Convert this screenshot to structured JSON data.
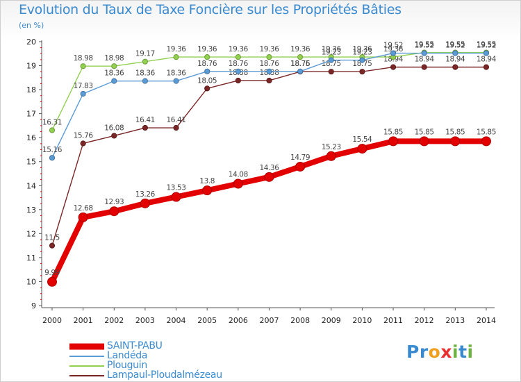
{
  "header": {
    "title": "Evolution du Taux de Taxe Foncière sur les Propriétés Bâties",
    "unit": "(en %)"
  },
  "chart_data": {
    "type": "line",
    "title": "Evolution du Taux de Taxe Foncière sur les Propriétés Bâties",
    "ylabel": "(en %)",
    "xlabel": "",
    "x": [
      "2000",
      "2001",
      "2002",
      "2003",
      "2004",
      "2005",
      "2006",
      "2007",
      "2008",
      "2009",
      "2010",
      "2011",
      "2012",
      "2013",
      "2014"
    ],
    "ylim": [
      9,
      20
    ],
    "yticks": [
      9,
      10,
      11,
      12,
      13,
      14,
      15,
      16,
      17,
      18,
      19,
      20
    ],
    "grid": false,
    "legend_position": "bottom-left",
    "series": [
      {
        "name": "SAINT-PABU",
        "color": "#e30000",
        "values": [
          9.99,
          12.68,
          12.93,
          13.26,
          13.53,
          13.8,
          14.08,
          14.36,
          14.79,
          15.23,
          15.54,
          15.85,
          15.85,
          15.85,
          15.85
        ],
        "labels": [
          "9.99",
          "12.68",
          "12.93",
          "13.26",
          "13.53",
          "13.8",
          "14.08",
          "14.36",
          "14.79",
          "15.23",
          "15.54",
          "15.85",
          "15.85",
          "15.85",
          "15.85"
        ]
      },
      {
        "name": "Landéda",
        "color": "#5b9bd5",
        "values": [
          15.16,
          17.83,
          18.36,
          18.36,
          18.36,
          18.76,
          18.76,
          18.76,
          18.76,
          19.23,
          19.23,
          19.52,
          19.52,
          19.52,
          19.52
        ],
        "labels": [
          "15.16",
          "17.83",
          "18.36",
          "18.36",
          "18.36",
          "18.76",
          "18.76",
          "18.76",
          "18.76",
          "19.23",
          "19.23",
          "19.52",
          "19.52",
          "19.52",
          "19.52"
        ]
      },
      {
        "name": "Plouguin",
        "color": "#92d050",
        "values": [
          16.31,
          18.98,
          18.98,
          19.17,
          19.36,
          19.36,
          19.36,
          19.36,
          19.36,
          19.36,
          19.36,
          19.36,
          19.55,
          19.55,
          19.55
        ],
        "labels": [
          "16.31",
          "18.98",
          "18.98",
          "19.17",
          "19.36",
          "19.36",
          "19.36",
          "19.36",
          "19.36",
          "19.36",
          "19.36",
          "19.36",
          "19.55",
          "19.55",
          "19.55"
        ]
      },
      {
        "name": "Lampaul-Ploudalmézeau",
        "color": "#7b2626",
        "values": [
          11.5,
          15.76,
          16.08,
          16.41,
          16.41,
          18.05,
          18.38,
          18.38,
          18.75,
          18.75,
          18.75,
          18.94,
          18.94,
          18.94,
          18.94
        ],
        "labels": [
          "11.5",
          "15.76",
          "16.08",
          "16.41",
          "16.41",
          "18.05",
          "18.38",
          "18.38",
          "18.75",
          "18.75",
          "18.75",
          "18.94",
          "18.94",
          "18.94",
          "18.94"
        ]
      }
    ]
  },
  "legend": {
    "items": [
      {
        "label": "SAINT-PABU",
        "color": "#e30000"
      },
      {
        "label": "Landéda",
        "color": "#5b9bd5"
      },
      {
        "label": "Plouguin",
        "color": "#92d050"
      },
      {
        "label": "Lampaul-Ploudalmézeau",
        "color": "#7b2626"
      }
    ]
  },
  "logo": {
    "letters": [
      "P",
      "r",
      "o",
      "x",
      "i",
      "t",
      "i"
    ],
    "colors": [
      "#3a8ad0",
      "#3a8ad0",
      "#f0a020",
      "#e83030",
      "#6cb33f",
      "#3a8ad0",
      "#6cb33f"
    ]
  }
}
